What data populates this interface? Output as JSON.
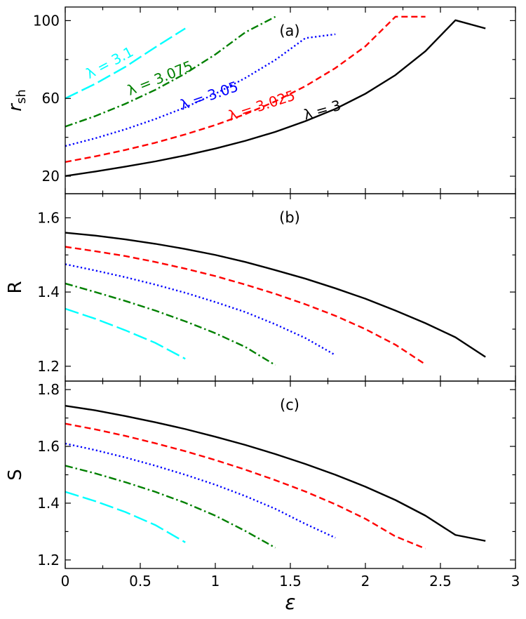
{
  "chart_data": [
    {
      "panel": "a",
      "type": "line",
      "panel_label": "(a)",
      "ylabel": "r",
      "ylabel_sub": "sh",
      "xlim": [
        0,
        3
      ],
      "ylim": [
        11,
        107
      ],
      "yticks": [
        20,
        60,
        100
      ],
      "series": [
        {
          "name": "λ = 3",
          "color": "#000000",
          "style": "solid",
          "x": [
            0,
            0.2,
            0.4,
            0.6,
            0.8,
            1.0,
            1.2,
            1.4,
            1.6,
            1.8,
            2.0,
            2.2,
            2.4,
            2.6,
            2.8
          ],
          "y": [
            20.1,
            22.4,
            24.9,
            27.6,
            30.7,
            34.2,
            38.2,
            42.8,
            48.3,
            54.6,
            62.4,
            72.0,
            84.3,
            100.2,
            96.0
          ]
        },
        {
          "name": "λ = 3.025",
          "color": "#ff0000",
          "style": "dashed",
          "x": [
            0,
            0.2,
            0.4,
            0.6,
            0.8,
            1.0,
            1.2,
            1.4,
            1.6,
            1.8,
            2.0,
            2.2,
            2.4
          ],
          "y": [
            27.3,
            30.2,
            33.5,
            37.2,
            41.5,
            46.3,
            51.9,
            58.5,
            66.3,
            75.6,
            86.8,
            102.0,
            102.0
          ]
        },
        {
          "name": "λ = 3.05",
          "color": "#0000ff",
          "style": "dotted",
          "x": [
            0,
            0.2,
            0.4,
            0.6,
            0.8,
            1.0,
            1.2,
            1.4,
            1.6,
            1.8
          ],
          "y": [
            35.5,
            39.5,
            44.1,
            49.4,
            55.4,
            62.4,
            70.5,
            79.8,
            91.0,
            93.0
          ]
        },
        {
          "name": "λ = 3.075",
          "color": "#008000",
          "style": "dashdot",
          "x": [
            0,
            0.2,
            0.4,
            0.6,
            0.8,
            1.0,
            1.2,
            1.4
          ],
          "y": [
            45.5,
            50.9,
            57.2,
            64.4,
            72.8,
            82.6,
            94.0,
            102.0
          ]
        },
        {
          "name": "λ = 3.1",
          "color": "#00ffff",
          "style": "longdash",
          "x": [
            0,
            0.2,
            0.4,
            0.6,
            0.8
          ],
          "y": [
            60.0,
            67.5,
            76.2,
            86.3,
            96.0
          ]
        }
      ],
      "annotations": [
        {
          "text": "λ = 3.1",
          "color": "#00ffff",
          "x": 0.16,
          "y": 70.0,
          "angle": -28
        },
        {
          "text": "λ = 3.075",
          "color": "#008000",
          "x": 0.43,
          "y": 61.5,
          "angle": -22
        },
        {
          "text": "λ = 3.05",
          "color": "#0000ff",
          "x": 0.78,
          "y": 54.0,
          "angle": -19
        },
        {
          "text": "λ = 3.025",
          "color": "#ff0000",
          "x": 1.1,
          "y": 48.5,
          "angle": -18
        },
        {
          "text": "λ = 3",
          "color": "#000000",
          "x": 1.6,
          "y": 49.0,
          "angle": -16
        }
      ]
    },
    {
      "panel": "b",
      "type": "line",
      "panel_label": "(b)",
      "ylabel": "R",
      "xlim": [
        0,
        3
      ],
      "ylim": [
        1.16,
        1.665
      ],
      "yticks": [
        1.2,
        1.4,
        1.6
      ],
      "series": [
        {
          "name": "λ = 3",
          "color": "#000000",
          "style": "solid",
          "x": [
            0,
            0.2,
            0.4,
            0.6,
            0.8,
            1.0,
            1.2,
            1.4,
            1.6,
            1.8,
            2.0,
            2.2,
            2.4,
            2.6,
            2.8
          ],
          "y": [
            1.56,
            1.552,
            1.542,
            1.53,
            1.516,
            1.5,
            1.481,
            1.459,
            1.436,
            1.41,
            1.382,
            1.35,
            1.316,
            1.278,
            1.225
          ]
        },
        {
          "name": "λ = 3.025",
          "color": "#ff0000",
          "style": "dashed",
          "x": [
            0,
            0.2,
            0.4,
            0.6,
            0.8,
            1.0,
            1.2,
            1.4,
            1.6,
            1.8,
            2.0,
            2.2,
            2.4
          ],
          "y": [
            1.522,
            1.51,
            1.497,
            1.481,
            1.463,
            1.443,
            1.42,
            1.395,
            1.367,
            1.336,
            1.3,
            1.258,
            1.205
          ]
        },
        {
          "name": "λ = 3.05",
          "color": "#0000ff",
          "style": "dotted",
          "x": [
            0,
            0.2,
            0.4,
            0.6,
            0.8,
            1.0,
            1.2,
            1.4,
            1.6,
            1.8
          ],
          "y": [
            1.475,
            1.458,
            1.44,
            1.42,
            1.398,
            1.373,
            1.346,
            1.313,
            1.276,
            1.23
          ]
        },
        {
          "name": "λ = 3.075",
          "color": "#008000",
          "style": "dashdot",
          "x": [
            0,
            0.2,
            0.4,
            0.6,
            0.8,
            1.0,
            1.2,
            1.4
          ],
          "y": [
            1.423,
            1.4,
            1.376,
            1.35,
            1.321,
            1.289,
            1.252,
            1.203
          ]
        },
        {
          "name": "λ = 3.1",
          "color": "#00ffff",
          "style": "longdash",
          "x": [
            0,
            0.2,
            0.4,
            0.6,
            0.8
          ],
          "y": [
            1.355,
            1.328,
            1.297,
            1.263,
            1.22
          ]
        }
      ],
      "annotations": []
    },
    {
      "panel": "c",
      "type": "line",
      "panel_label": "(c)",
      "ylabel": "S",
      "xlabel": "ε",
      "xlim": [
        0,
        3
      ],
      "xticks": [
        0,
        0.5,
        1,
        1.5,
        2,
        2.5,
        3
      ],
      "xticklabels": [
        "0",
        "0.5",
        "1",
        "1.5",
        "2",
        "2.5",
        "3"
      ],
      "ylim": [
        1.17,
        1.83
      ],
      "yticks": [
        1.2,
        1.4,
        1.6,
        1.8
      ],
      "series": [
        {
          "name": "λ = 3",
          "color": "#000000",
          "style": "solid",
          "x": [
            0,
            0.2,
            0.4,
            0.6,
            0.8,
            1.0,
            1.2,
            1.4,
            1.6,
            1.8,
            2.0,
            2.2,
            2.4,
            2.6,
            2.8
          ],
          "y": [
            1.743,
            1.727,
            1.707,
            1.685,
            1.661,
            1.634,
            1.605,
            1.573,
            1.538,
            1.5,
            1.458,
            1.411,
            1.356,
            1.288,
            1.267
          ]
        },
        {
          "name": "λ = 3.025",
          "color": "#ff0000",
          "style": "dashed",
          "x": [
            0,
            0.2,
            0.4,
            0.6,
            0.8,
            1.0,
            1.2,
            1.4,
            1.6,
            1.8,
            2.0,
            2.2,
            2.4
          ],
          "y": [
            1.68,
            1.66,
            1.637,
            1.611,
            1.583,
            1.552,
            1.518,
            1.481,
            1.441,
            1.396,
            1.345,
            1.283,
            1.24
          ]
        },
        {
          "name": "λ = 3.05",
          "color": "#0000ff",
          "style": "dotted",
          "x": [
            0,
            0.2,
            0.4,
            0.6,
            0.8,
            1.0,
            1.2,
            1.4,
            1.6,
            1.8
          ],
          "y": [
            1.61,
            1.587,
            1.561,
            1.532,
            1.5,
            1.465,
            1.425,
            1.38,
            1.327,
            1.278
          ]
        },
        {
          "name": "λ = 3.075",
          "color": "#008000",
          "style": "dashdot",
          "x": [
            0,
            0.2,
            0.4,
            0.6,
            0.8,
            1.0,
            1.2,
            1.4
          ],
          "y": [
            1.532,
            1.505,
            1.474,
            1.44,
            1.401,
            1.356,
            1.302,
            1.243
          ]
        },
        {
          "name": "λ = 3.1",
          "color": "#00ffff",
          "style": "longdash",
          "x": [
            0,
            0.2,
            0.4,
            0.6,
            0.8
          ],
          "y": [
            1.44,
            1.407,
            1.369,
            1.323,
            1.262
          ]
        }
      ],
      "annotations": []
    }
  ]
}
